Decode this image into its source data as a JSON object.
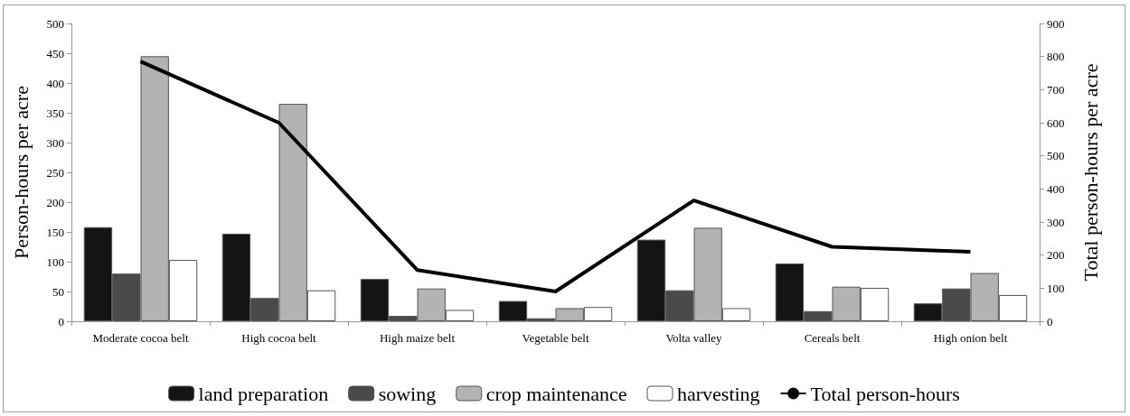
{
  "chart_data": {
    "type": "bar",
    "ylabel": "Person-hours per acre",
    "y2label": "Total person-hours per acre",
    "categories": [
      "Moderate cocoa belt",
      "High cocoa belt",
      "High maize belt",
      "Vegetable belt",
      "Volta valley",
      "Cereals belt",
      "High onion belt"
    ],
    "series": [
      {
        "name": "land preparation",
        "color": "#141414",
        "values": [
          158,
          147,
          71,
          34,
          137,
          97,
          30
        ]
      },
      {
        "name": "sowing",
        "color": "#4a4a4a",
        "values": [
          80,
          39,
          9,
          5,
          52,
          17,
          55
        ]
      },
      {
        "name": "crop maintenance",
        "color": "#b3b3b3",
        "values": [
          445,
          365,
          55,
          22,
          157,
          58,
          81
        ]
      },
      {
        "name": "harvesting",
        "color": "#ffffff",
        "values": [
          103,
          52,
          19,
          24,
          22,
          56,
          44
        ]
      },
      {
        "name": "Total person-hours",
        "type": "line",
        "axis": "y2",
        "color": "#000000",
        "values": [
          785,
          600,
          155,
          90,
          365,
          225,
          210
        ]
      }
    ],
    "ylim": [
      0,
      500
    ],
    "yticks": [
      0,
      50,
      100,
      150,
      200,
      250,
      300,
      350,
      400,
      450,
      500
    ],
    "y2lim": [
      0,
      900
    ],
    "y2ticks": [
      0,
      100,
      200,
      300,
      400,
      500,
      600,
      700,
      800,
      900
    ],
    "grid": false,
    "legend": "bottom",
    "marker": "none",
    "line_style": "solid"
  }
}
